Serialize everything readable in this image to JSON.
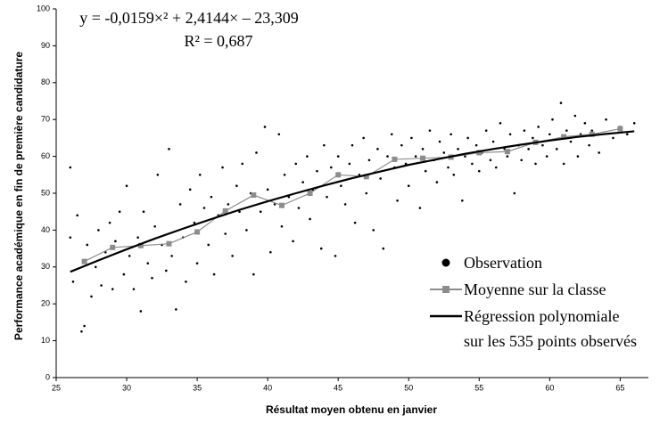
{
  "chart_data": {
    "type": "scatter",
    "annotations": [
      "y = -0,0159×² + 2,4144× – 23,309",
      "R² = 0,687"
    ],
    "x_label": "Résultat moyen obtenu en janvier",
    "y_label": "Performance académique en fin de première candidature",
    "xlim": [
      25,
      67
    ],
    "xticks": [
      25,
      30,
      35,
      40,
      45,
      50,
      55,
      60,
      65
    ],
    "ylim": [
      0,
      100
    ],
    "yticks": [
      0,
      10,
      20,
      30,
      40,
      50,
      60,
      70,
      80,
      90,
      100
    ],
    "series": [
      {
        "name": "Observation",
        "kind": "scatter",
        "color": "#000000",
        "x": [
          26,
          26,
          26.2,
          26.5,
          26.8,
          27,
          27.2,
          27.5,
          27.8,
          28,
          28.2,
          28.5,
          28.8,
          29,
          29.2,
          29.5,
          29.8,
          30,
          30.2,
          30.5,
          30.8,
          31,
          31.2,
          31.5,
          31.8,
          32,
          32.2,
          32.5,
          32.8,
          33,
          33.2,
          33.5,
          33.8,
          34,
          34.2,
          34.5,
          34.8,
          35,
          35.2,
          35.5,
          35.8,
          36,
          36.2,
          36.5,
          36.8,
          37,
          37.2,
          37.5,
          37.8,
          38,
          38.2,
          38.5,
          38.8,
          39,
          39.2,
          39.5,
          39.8,
          40,
          40.2,
          40.5,
          40.8,
          41,
          41.2,
          41.5,
          41.8,
          42,
          42.2,
          42.5,
          42.8,
          43,
          43.2,
          43.5,
          43.8,
          44,
          44.2,
          44.5,
          44.8,
          45,
          45.2,
          45.5,
          45.8,
          46,
          46.2,
          46.5,
          46.8,
          47,
          47.2,
          47.5,
          47.8,
          48,
          48.2,
          48.5,
          48.8,
          49,
          49.2,
          49.5,
          49.8,
          50,
          50.2,
          50.5,
          50.8,
          51,
          51.2,
          51.5,
          51.8,
          52,
          52.2,
          52.5,
          52.8,
          53,
          53.2,
          53.5,
          53.8,
          54,
          54.2,
          54.5,
          54.8,
          55,
          55.2,
          55.5,
          55.8,
          56,
          56.2,
          56.5,
          56.8,
          57,
          57.2,
          57.5,
          57.8,
          58,
          58.2,
          58.5,
          58.8,
          59,
          59.2,
          59.5,
          59.8,
          60,
          60.2,
          60.5,
          60.8,
          61,
          61.2,
          61.5,
          61.8,
          62,
          62.2,
          62.5,
          62.8,
          63,
          63.5,
          64,
          64.5,
          65,
          65.5,
          66
        ],
        "values": [
          57,
          38,
          26,
          44,
          12.5,
          14,
          36,
          22,
          30,
          40,
          25,
          34,
          42,
          24,
          37,
          45,
          28,
          52,
          33,
          24,
          38,
          18,
          45,
          31,
          27,
          41,
          55,
          36,
          29,
          62,
          33,
          18.5,
          47,
          38,
          26,
          51,
          42,
          31,
          55,
          46,
          36,
          49,
          28,
          44,
          57,
          39,
          47,
          33,
          52,
          45,
          58,
          40,
          50,
          28,
          61,
          45,
          68,
          51,
          34,
          47,
          66,
          41,
          55,
          49,
          37,
          58,
          46,
          53,
          60,
          43,
          51,
          56,
          35,
          63,
          49,
          57,
          33,
          60,
          52,
          47,
          58,
          63,
          42,
          55,
          65,
          50,
          59,
          40,
          62,
          54,
          35,
          60,
          66,
          57,
          48,
          63,
          58,
          52,
          65,
          60,
          46,
          62,
          56,
          67,
          59,
          53,
          64,
          61,
          57,
          66,
          55,
          62,
          48,
          60,
          65,
          58,
          63,
          56,
          61,
          67,
          59,
          64,
          57,
          69,
          62,
          60,
          66,
          50,
          63,
          59,
          67,
          62,
          65,
          58,
          68,
          63,
          60,
          66,
          70,
          62,
          74.5,
          58,
          67,
          64,
          71,
          60,
          66,
          69,
          63,
          67,
          61,
          70,
          65,
          68,
          66,
          69
        ]
      },
      {
        "name": "Moyenne sur la classe",
        "kind": "line-markers",
        "color": "#8c8c8c",
        "x": [
          27,
          29,
          31,
          33,
          35,
          37,
          39,
          41,
          43,
          45,
          47,
          49,
          51,
          53,
          55,
          57,
          59,
          61,
          63,
          65
        ],
        "values": [
          31.5,
          35.3,
          35.8,
          36.3,
          39.5,
          45.2,
          49.5,
          46.7,
          50,
          55,
          54.5,
          59.2,
          59.5,
          59.8,
          61,
          61.3,
          63.8,
          65.3,
          66,
          67.5
        ]
      },
      {
        "name": "Régression polynomiale\nsur les 535 points observés",
        "kind": "line",
        "color": "#000000",
        "x": [
          26,
          28,
          30,
          32,
          34,
          36,
          38,
          40,
          42,
          44,
          46,
          48,
          50,
          52,
          54,
          56,
          58,
          60,
          62,
          64,
          66
        ],
        "values": [
          28.7,
          31.8,
          34.8,
          37.7,
          40.4,
          43.0,
          45.5,
          47.8,
          50.0,
          52.1,
          54.1,
          55.9,
          57.7,
          59.2,
          60.7,
          62.0,
          63.2,
          64.3,
          65.3,
          66.1,
          66.8
        ]
      }
    ]
  }
}
